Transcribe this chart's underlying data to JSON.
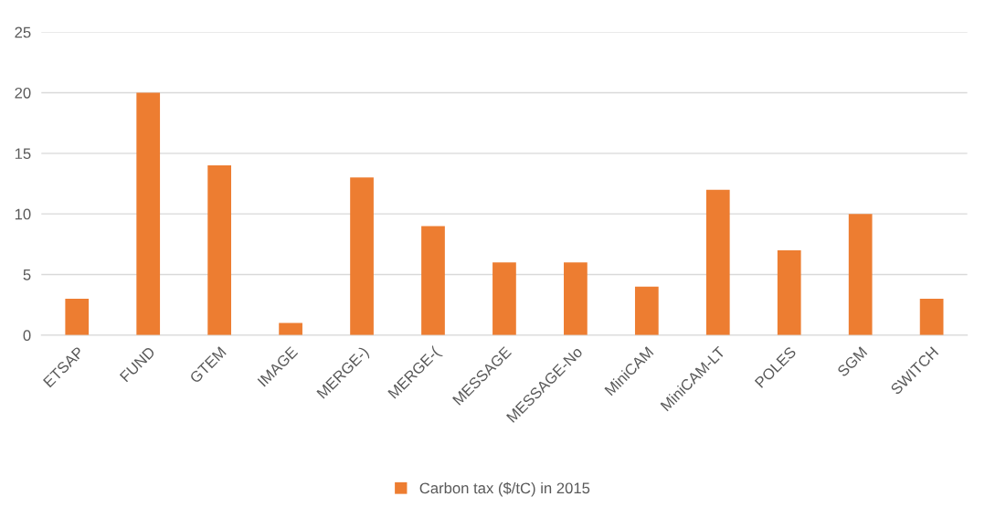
{
  "chart_data": {
    "type": "bar",
    "categories": [
      "ETSAP",
      "FUND",
      "GTEM",
      "IMAGE",
      "MERGE-)",
      "MERGE-(",
      "MESSAGE",
      "MESSAGE-No",
      "MiniCAM",
      "MiniCAM-LT",
      "POLES",
      "SGM",
      "SWITCH"
    ],
    "series": [
      {
        "name": "Carbon tax ($/tC) in 2015",
        "color": "#ed7d31",
        "values": [
          3,
          20,
          14,
          1,
          13,
          9,
          6,
          6,
          4,
          12,
          7,
          10,
          3
        ]
      }
    ],
    "ylim": [
      0,
      25
    ],
    "yticks": [
      0,
      5,
      10,
      15,
      20,
      25
    ],
    "grid": "y",
    "legend": "bottom"
  }
}
